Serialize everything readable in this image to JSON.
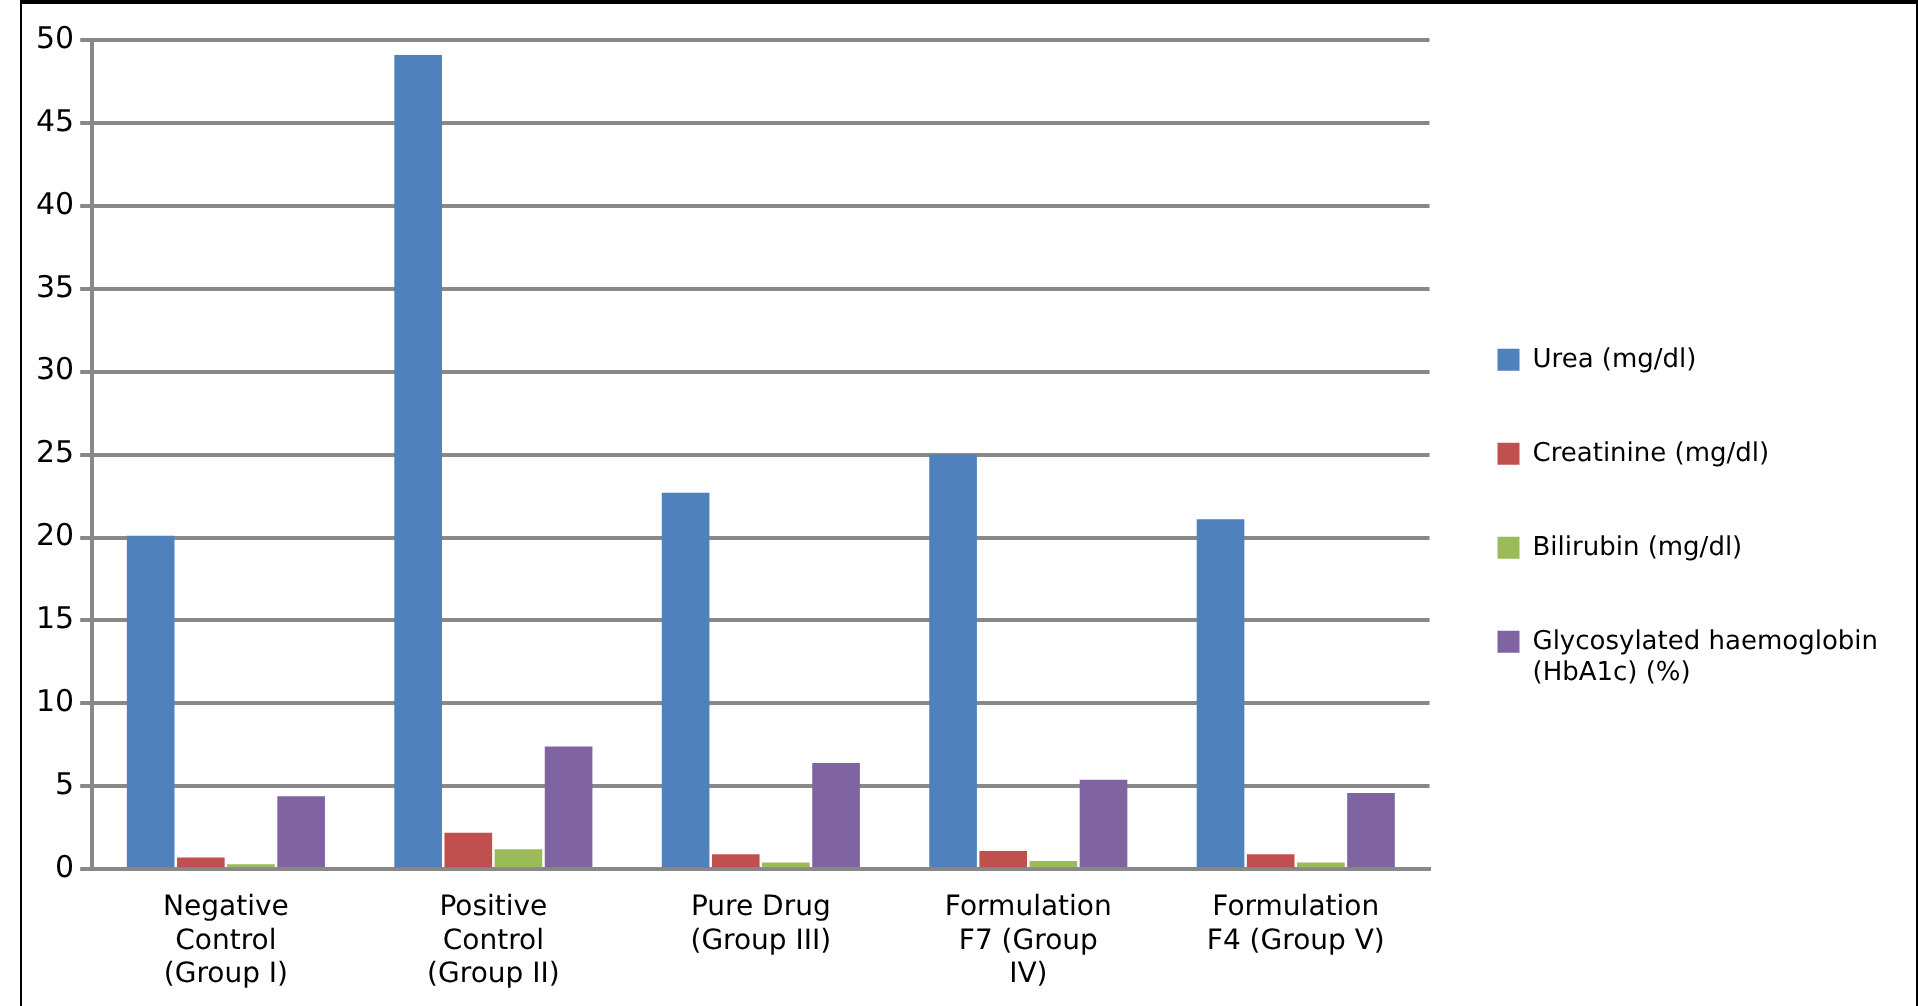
{
  "chart_data": {
    "type": "bar",
    "categories": [
      "Negative Control (Group I)",
      "Positive Control (Group II)",
      "Pure Drug (Group III)",
      "Formulation F7 (Group IV)",
      "Formulation F4 (Group V)"
    ],
    "series": [
      {
        "name": "Urea (mg/dl)",
        "color": "#4f81bd",
        "values": [
          20.1,
          49.1,
          22.7,
          25.0,
          21.1
        ]
      },
      {
        "name": "Creatinine (mg/dl)",
        "color": "#c0504d",
        "values": [
          0.7,
          2.2,
          0.9,
          1.1,
          0.9
        ]
      },
      {
        "name": "Bilirubin (mg/dl)",
        "color": "#9bbb59",
        "values": [
          0.3,
          1.2,
          0.4,
          0.5,
          0.4
        ]
      },
      {
        "name": "Glycosylated haemoglobin (HbA1c) (%)",
        "color": "#8064a2",
        "values": [
          4.4,
          7.4,
          6.4,
          5.4,
          4.6
        ]
      }
    ],
    "ylim": [
      0,
      50
    ],
    "yticks": [
      0,
      5,
      10,
      15,
      20,
      25,
      30,
      35,
      40,
      45,
      50
    ],
    "grid": "y",
    "legend": "right"
  }
}
